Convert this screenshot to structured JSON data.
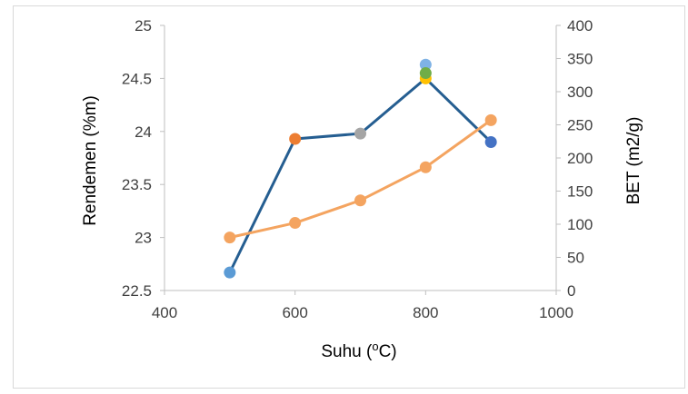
{
  "chart_data": {
    "type": "line",
    "title": "",
    "xlabel": {
      "base": "Suhu (",
      "sup": "o",
      "tail": "C)"
    },
    "ylabel": "Rendemen (%m)",
    "y2label": "BET (m2/g)",
    "xlim": [
      400,
      1000
    ],
    "ylim": [
      22.5,
      25
    ],
    "y2lim": [
      0,
      400
    ],
    "x_ticks": [
      "400",
      "600",
      "800",
      "1000"
    ],
    "y_ticks": [
      "22.5",
      "23",
      "23.5",
      "24",
      "24.5",
      "25"
    ],
    "y2_ticks": [
      "0",
      "50",
      "100",
      "150",
      "200",
      "250",
      "300",
      "350",
      "400"
    ],
    "grid": false,
    "legend": "none",
    "series": [
      {
        "axis": "left",
        "color": "#255e91",
        "x": [
          500,
          600,
          700,
          800,
          900
        ],
        "y": [
          22.67,
          23.93,
          23.98,
          24.5,
          23.9
        ],
        "marker_colors": [
          "#5b9bd5",
          "#ed7d31",
          "#a5a5a5",
          "#ffc000",
          "#4472c4"
        ]
      },
      {
        "axis": "right",
        "color": "#f4a460",
        "x": [
          500,
          600,
          700,
          800,
          900
        ],
        "y": [
          80,
          102,
          136,
          186,
          257
        ],
        "marker_colors": [
          "#f4a460",
          "#f4a460",
          "#f4a460",
          "#f4a460",
          "#f4a460"
        ]
      }
    ],
    "extra_points": [
      {
        "axis": "left",
        "x": 800,
        "y": 24.63,
        "color": "#7fb2e5"
      },
      {
        "axis": "left",
        "x": 800,
        "y": 24.55,
        "color": "#70ad47"
      }
    ]
  }
}
